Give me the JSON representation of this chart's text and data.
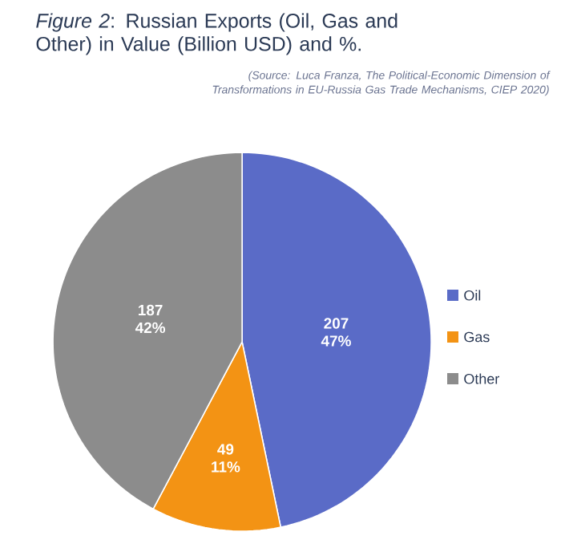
{
  "chart_data": {
    "type": "pie",
    "title": "*Figure 2*: Russian Exports (Oil, Gas and Other) in Value (Billion USD) and %.",
    "annotations": [
      "(Source: Luca Franza, The Political-Economic Dimension of Transformations in EU-Russia Gas Trade Mechanisms, CIEP 2020)"
    ],
    "categories": [
      "Oil",
      "Gas",
      "Other"
    ],
    "values": [
      207,
      49,
      187
    ],
    "value_labels": [
      "207 47%",
      "49 11%",
      "187 42%"
    ],
    "colors": [
      "#5a6bc7",
      "#f39314",
      "#8c8c8c"
    ],
    "legend": "right"
  }
}
